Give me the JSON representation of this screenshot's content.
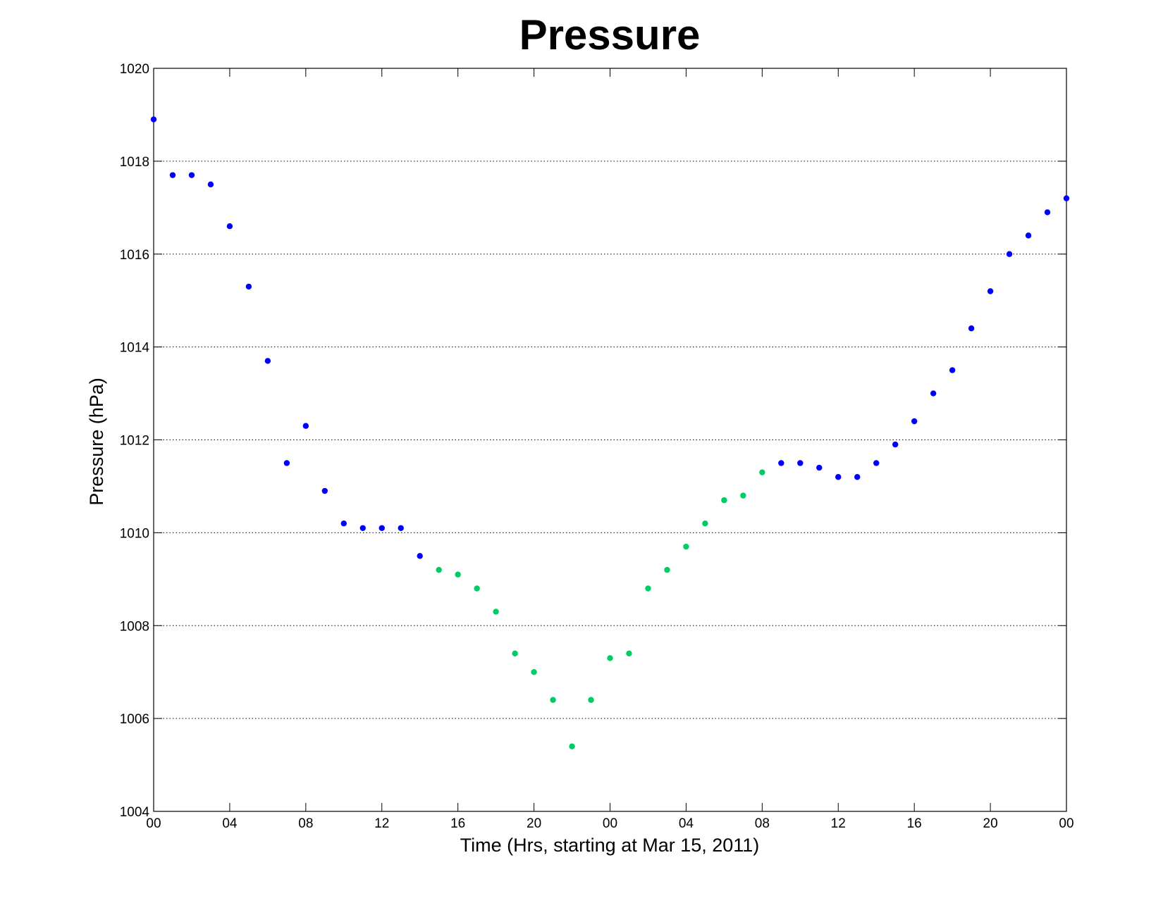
{
  "chart_data": {
    "type": "scatter",
    "title": "Pressure",
    "xlabel": "Time (Hrs, starting at Mar 15, 2011)",
    "ylabel": "Pressure (hPa)",
    "xlim": [
      0,
      48
    ],
    "ylim": [
      1004,
      1020
    ],
    "grid": "horizontal dotted",
    "x_tick_labels": [
      "00",
      "04",
      "08",
      "12",
      "16",
      "20",
      "00",
      "04",
      "08",
      "12",
      "16",
      "20",
      "00"
    ],
    "x_tick_values": [
      0,
      4,
      8,
      12,
      16,
      20,
      24,
      28,
      32,
      36,
      40,
      44,
      48
    ],
    "y_tick_labels": [
      "1004",
      "1006",
      "1008",
      "1010",
      "1012",
      "1014",
      "1016",
      "1018",
      "1020"
    ],
    "y_tick_values": [
      1004,
      1006,
      1008,
      1010,
      1012,
      1014,
      1016,
      1018,
      1020
    ],
    "colors": {
      "blue": "#0000ff",
      "green": "#00cc66"
    },
    "series": [
      {
        "color": "#0000ff",
        "points": [
          [
            0,
            1018.9
          ],
          [
            1,
            1017.7
          ],
          [
            2,
            1017.7
          ],
          [
            3,
            1017.5
          ],
          [
            4,
            1016.6
          ],
          [
            5,
            1015.3
          ],
          [
            6,
            1013.7
          ],
          [
            7,
            1011.5
          ],
          [
            8,
            1012.3
          ],
          [
            9,
            1010.9
          ],
          [
            10,
            1010.2
          ],
          [
            11,
            1010.1
          ],
          [
            12,
            1010.1
          ],
          [
            13,
            1010.1
          ],
          [
            14,
            1009.5
          ],
          [
            33,
            1011.5
          ],
          [
            34,
            1011.5
          ],
          [
            35,
            1011.4
          ],
          [
            36,
            1011.2
          ],
          [
            37,
            1011.2
          ],
          [
            38,
            1011.5
          ],
          [
            39,
            1011.9
          ],
          [
            40,
            1012.4
          ],
          [
            41,
            1013.0
          ],
          [
            42,
            1013.5
          ],
          [
            43,
            1014.4
          ],
          [
            44,
            1015.2
          ],
          [
            45,
            1016.0
          ],
          [
            46,
            1016.4
          ],
          [
            47,
            1016.9
          ],
          [
            48,
            1017.2
          ]
        ]
      },
      {
        "color": "#00cc66",
        "points": [
          [
            15,
            1009.2
          ],
          [
            16,
            1009.1
          ],
          [
            17,
            1008.8
          ],
          [
            18,
            1008.3
          ],
          [
            19,
            1007.4
          ],
          [
            20,
            1007.0
          ],
          [
            21,
            1006.4
          ],
          [
            22,
            1005.4
          ],
          [
            23,
            1006.4
          ],
          [
            24,
            1007.3
          ],
          [
            25,
            1007.4
          ],
          [
            26,
            1008.8
          ],
          [
            27,
            1009.2
          ],
          [
            28,
            1009.7
          ],
          [
            29,
            1010.2
          ],
          [
            30,
            1010.7
          ],
          [
            31,
            1010.8
          ],
          [
            32,
            1011.3
          ]
        ]
      }
    ]
  }
}
